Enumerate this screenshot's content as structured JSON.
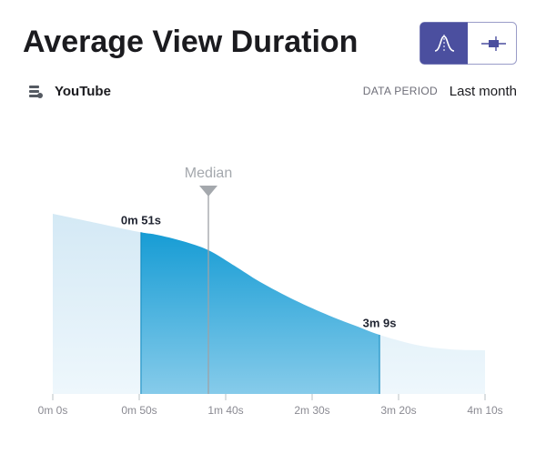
{
  "header": {
    "title": "Average View Duration",
    "source": "YouTube",
    "period_label": "DATA PERIOD",
    "period": "Last month"
  },
  "chart_data": {
    "type": "area",
    "x": [
      0,
      25,
      50,
      60,
      75,
      90,
      105,
      120,
      140,
      160,
      175,
      189,
      210,
      230,
      250
    ],
    "values": [
      99,
      94,
      89,
      87.5,
      84,
      79,
      70.5,
      61.5,
      51.5,
      43,
      37.5,
      32.5,
      27,
      24.5,
      24
    ],
    "xlim": [
      0,
      250
    ],
    "ylim": [
      0,
      100
    ],
    "xticks": [
      {
        "value": 0,
        "label": "0m 0s"
      },
      {
        "value": 50,
        "label": "0m 50s"
      },
      {
        "value": 100,
        "label": "1m 40s"
      },
      {
        "value": 150,
        "label": "2m 30s"
      },
      {
        "value": 200,
        "label": "3m 20s"
      },
      {
        "value": 250,
        "label": "4m 10s"
      }
    ],
    "highlight": [
      {
        "value": 51,
        "label": "0m 51s"
      },
      {
        "value": 189,
        "label": "3m 9s"
      }
    ],
    "median": {
      "value": 90,
      "label": "Median"
    },
    "color": "#d4e9f5",
    "highlight_color": "#0a97d2"
  }
}
